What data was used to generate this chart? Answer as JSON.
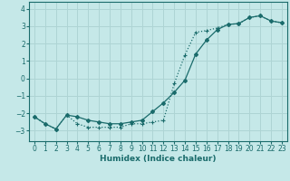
{
  "title": "",
  "xlabel": "Humidex (Indice chaleur)",
  "ylabel": "",
  "background_color": "#c5e8e8",
  "grid_color": "#aed4d4",
  "line_color": "#1a6b6b",
  "xlim": [
    -0.5,
    23.5
  ],
  "ylim": [
    -3.6,
    4.4
  ],
  "yticks": [
    -3,
    -2,
    -1,
    0,
    1,
    2,
    3,
    4
  ],
  "xticks": [
    0,
    1,
    2,
    3,
    4,
    5,
    6,
    7,
    8,
    9,
    10,
    11,
    12,
    13,
    14,
    15,
    16,
    17,
    18,
    19,
    20,
    21,
    22,
    23
  ],
  "line1_x": [
    0,
    1,
    2,
    3,
    4,
    5,
    6,
    7,
    8,
    9,
    10,
    11,
    12,
    13,
    14,
    15,
    16,
    17,
    18,
    19,
    20,
    21,
    22,
    23
  ],
  "line1_y": [
    -2.2,
    -2.6,
    -2.9,
    -2.1,
    -2.6,
    -2.8,
    -2.8,
    -2.8,
    -2.8,
    -2.6,
    -2.6,
    -2.5,
    -2.4,
    -0.3,
    1.35,
    2.65,
    2.75,
    2.9,
    3.1,
    3.15,
    3.5,
    3.6,
    3.3,
    3.2
  ],
  "line2_x": [
    0,
    1,
    2,
    3,
    4,
    5,
    6,
    7,
    8,
    9,
    10,
    11,
    12,
    13,
    14,
    15,
    16,
    17,
    18,
    19,
    20,
    21,
    22,
    23
  ],
  "line2_y": [
    -2.2,
    -2.6,
    -2.9,
    -2.1,
    -2.2,
    -2.4,
    -2.5,
    -2.6,
    -2.6,
    -2.5,
    -2.4,
    -1.9,
    -1.4,
    -0.8,
    -0.1,
    1.4,
    2.2,
    2.8,
    3.1,
    3.15,
    3.5,
    3.6,
    3.3,
    3.2
  ]
}
